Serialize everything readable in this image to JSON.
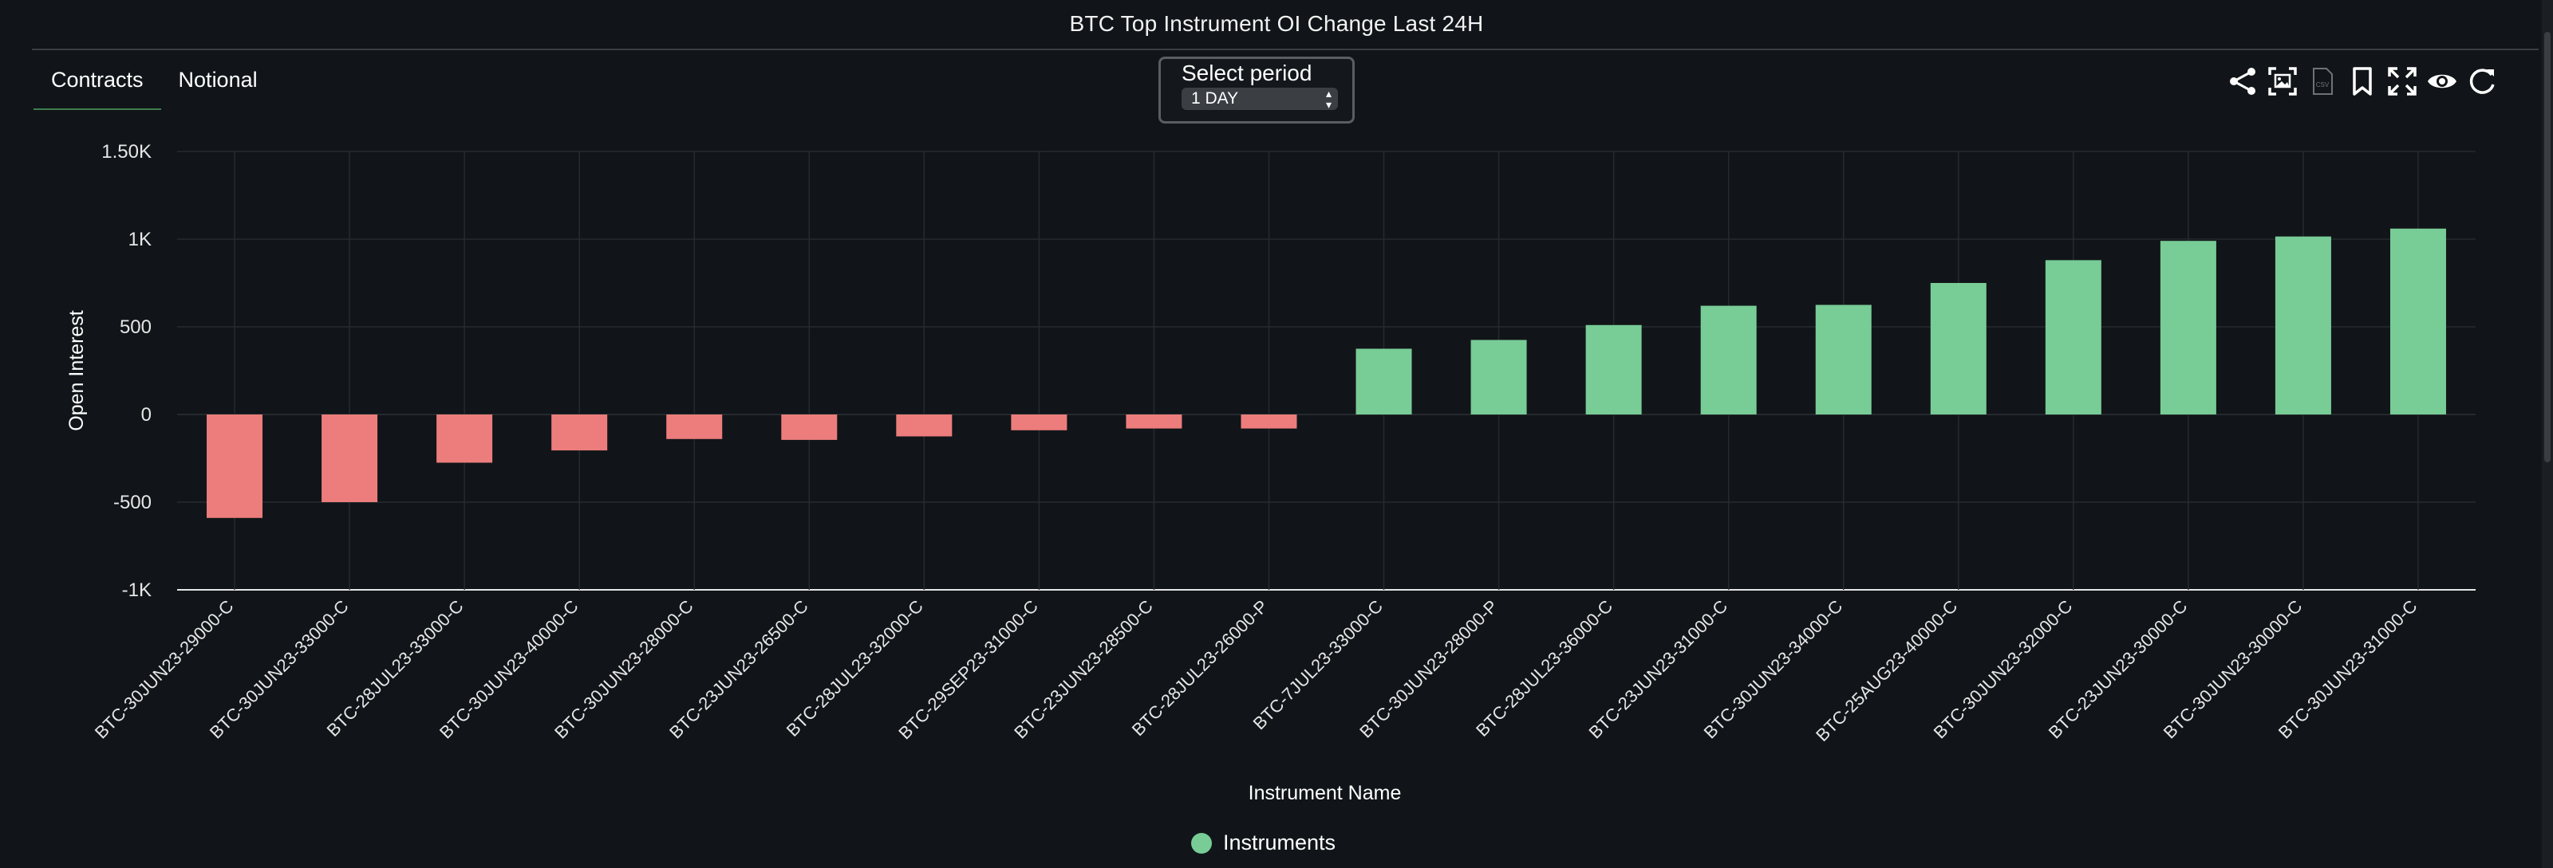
{
  "title": "BTC Top Instrument OI Change Last 24H",
  "tabs": [
    {
      "label": "Contracts",
      "active": true
    },
    {
      "label": "Notional",
      "active": false
    }
  ],
  "period": {
    "label": "Select period",
    "selected": "1 DAY"
  },
  "toolbar": {
    "icons": [
      "share-icon",
      "screenshot-icon",
      "csv-icon",
      "bookmark-icon",
      "fullscreen-icon",
      "eye-icon",
      "refresh-icon"
    ],
    "csv_text": "CSV"
  },
  "colors": {
    "positive": "#78cc96",
    "negative": "#ec7d7c",
    "background": "#111519",
    "grid": "#262b30"
  },
  "legend": {
    "label": "Instruments"
  },
  "chart_data": {
    "type": "bar",
    "title": "BTC Top Instrument OI Change Last 24H",
    "xlabel": "Instrument Name",
    "ylabel": "Open Interest",
    "ylim": [
      -1000,
      1500
    ],
    "yticks": [
      -1000,
      -500,
      0,
      500,
      1000,
      1500
    ],
    "ytick_labels": [
      "-1K",
      "-500",
      "0",
      "500",
      "1K",
      "1.50K"
    ],
    "categories": [
      "BTC-30JUN23-29000-C",
      "BTC-30JUN23-33000-C",
      "BTC-28JUL23-33000-C",
      "BTC-30JUN23-40000-C",
      "BTC-30JUN23-28000-C",
      "BTC-23JUN23-26500-C",
      "BTC-28JUL23-32000-C",
      "BTC-29SEP23-31000-C",
      "BTC-23JUN23-28500-C",
      "BTC-28JUL23-26000-P",
      "BTC-7JUL23-33000-C",
      "BTC-30JUN23-28000-P",
      "BTC-28JUL23-36000-C",
      "BTC-23JUN23-31000-C",
      "BTC-30JUN23-34000-C",
      "BTC-25AUG23-40000-C",
      "BTC-30JUN23-32000-C",
      "BTC-23JUN23-30000-C",
      "BTC-30JUN23-30000-C",
      "BTC-30JUN23-31000-C"
    ],
    "series": [
      {
        "name": "Instruments",
        "values": [
          -590,
          -500,
          -275,
          -205,
          -140,
          -145,
          -125,
          -90,
          -80,
          -80,
          375,
          425,
          510,
          620,
          625,
          750,
          880,
          990,
          1015,
          1060
        ]
      }
    ]
  }
}
